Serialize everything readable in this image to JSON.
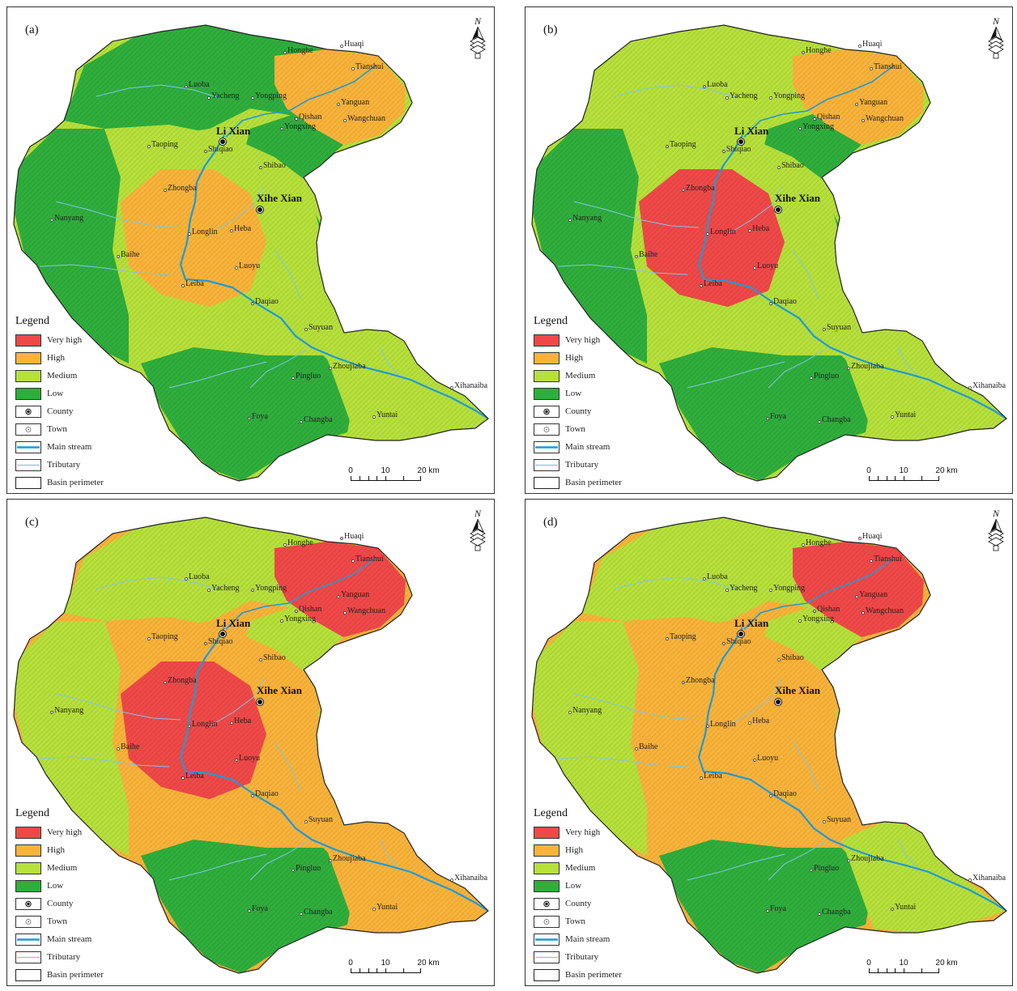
{
  "legend": {
    "title": "Legend",
    "items": [
      {
        "label": "Very high",
        "kind": "fill",
        "color": "#f04848"
      },
      {
        "label": "High",
        "kind": "fill",
        "color": "#f9b33a"
      },
      {
        "label": "Medium",
        "kind": "fill",
        "color": "#b6e03a"
      },
      {
        "label": "Low",
        "kind": "fill",
        "color": "#2fae3c"
      },
      {
        "label": "County",
        "kind": "county-symbol"
      },
      {
        "label": "Town",
        "kind": "town-symbol"
      },
      {
        "label": "Main stream",
        "kind": "line",
        "color": "#1f9ad6"
      },
      {
        "label": "Tributary",
        "kind": "thin-line",
        "color": "#7fc7e8"
      },
      {
        "label": "Basin perimeter",
        "kind": "outline",
        "color": "#222222"
      }
    ]
  },
  "north_arrow": {
    "letter": "N"
  },
  "scale_bar": {
    "ticks": [
      "0",
      "10",
      "20 km"
    ]
  },
  "counties": [
    "Li Xian",
    "Xihe Xian"
  ],
  "towns": [
    "Honghe",
    "Huaqi",
    "Luoba",
    "Yacheng",
    "Yongping",
    "Tianshui",
    "Yanguan",
    "Qishan",
    "Yongxing",
    "Wangchuan",
    "Taoping",
    "Shiqiao",
    "Shibao",
    "Zhongba",
    "Nanyang",
    "Longlin",
    "Heba",
    "Baihe",
    "Luoyu",
    "Leiba",
    "Daqiao",
    "Suyuan",
    "Zhoujiaba",
    "Pingluo",
    "Xihanaiba",
    "Foya",
    "Changba",
    "Yuntai"
  ],
  "panels": [
    {
      "label": "(a)",
      "colors": {
        "north": "#2fae3c",
        "west": "#2fae3c",
        "center": "#b6e03a",
        "core": "#f9b33a",
        "east": "#2fae3c",
        "south": "#2fae3c",
        "southeast": "#b6e03a",
        "northeast": "#f9b33a"
      }
    },
    {
      "label": "(b)",
      "colors": {
        "north": "#b6e03a",
        "west": "#2fae3c",
        "center": "#b6e03a",
        "core": "#f04848",
        "east": "#2fae3c",
        "south": "#2fae3c",
        "southeast": "#b6e03a",
        "northeast": "#f9b33a"
      }
    },
    {
      "label": "(c)",
      "colors": {
        "north": "#b6e03a",
        "west": "#b6e03a",
        "center": "#f9b33a",
        "core": "#f04848",
        "east": "#b6e03a",
        "south": "#2fae3c",
        "southeast": "#f9b33a",
        "northeast": "#f04848"
      }
    },
    {
      "label": "(d)",
      "colors": {
        "north": "#b6e03a",
        "west": "#b6e03a",
        "center": "#f9b33a",
        "core": "#f9b33a",
        "east": "#b6e03a",
        "south": "#2fae3c",
        "southeast": "#b6e03a",
        "northeast": "#f04848"
      }
    }
  ]
}
